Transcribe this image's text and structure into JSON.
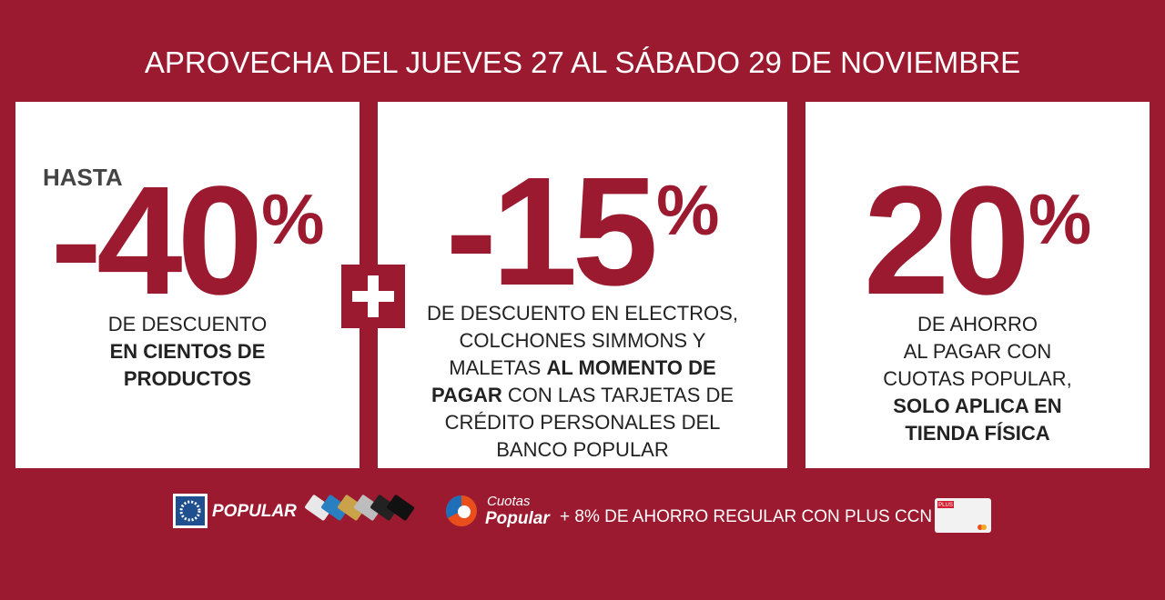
{
  "header": {
    "title": "APROVECHA DEL JUEVES 27 AL SÁBADO 29 DE NOVIEMBRE"
  },
  "panels": [
    {
      "prefix": "HASTA",
      "number": "-40",
      "unit": "%",
      "lines": [
        [
          {
            "text": "DE DESCUENTO"
          }
        ],
        [
          {
            "text": "EN CIENTOS DE",
            "bold": true
          }
        ],
        [
          {
            "text": "PRODUCTOS",
            "bold": true
          }
        ]
      ]
    },
    {
      "number": "-15",
      "unit": "%",
      "lines": [
        [
          {
            "text": "DE DESCUENTO EN ELECTROS,"
          }
        ],
        [
          {
            "text": "COLCHONES SIMMONS Y"
          }
        ],
        [
          {
            "text": "MALETAS "
          },
          {
            "text": "AL MOMENTO DE",
            "bold": true
          }
        ],
        [
          {
            "text": "PAGAR",
            "bold": true
          },
          {
            "text": " CON LAS TARJETAS DE"
          }
        ],
        [
          {
            "text": "CRÉDITO PERSONALES DEL"
          }
        ],
        [
          {
            "text": "BANCO POPULAR"
          }
        ]
      ]
    },
    {
      "number": "20",
      "unit": "%",
      "lines": [
        [
          {
            "text": "DE AHORRO"
          }
        ],
        [
          {
            "text": "AL PAGAR CON"
          }
        ],
        [
          {
            "text": "CUOTAS POPULAR,"
          }
        ],
        [
          {
            "text": "SOLO APLICA EN",
            "bold": true
          }
        ],
        [
          {
            "text": "TIENDA FÍSICA",
            "bold": true
          }
        ]
      ]
    }
  ],
  "footer": {
    "brand": "POPULAR",
    "cuotas_top": "Cuotas",
    "cuotas_bottom": "Popular",
    "offer": "+ 8% DE AHORRO REGULAR CON PLUS CCN",
    "card_label": "PLUS"
  }
}
